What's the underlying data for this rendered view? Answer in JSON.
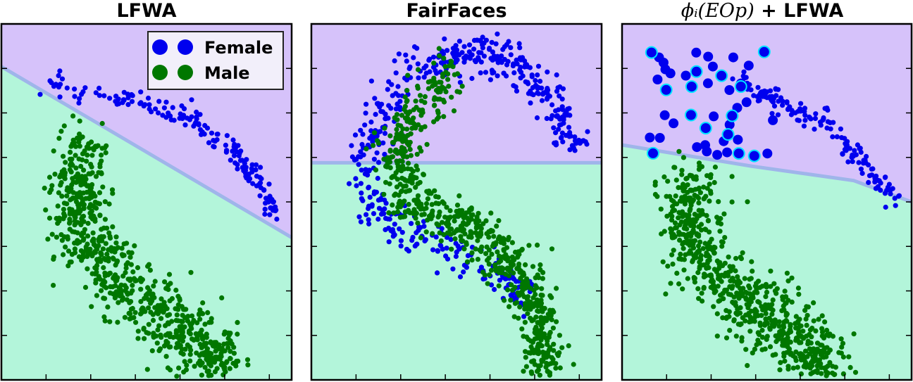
{
  "colors": {
    "female": "#0000ee",
    "male": "#007700",
    "region_female": "#d6c2fa",
    "region_male": "#b3f5da",
    "boundary": "#9fb5ea",
    "highlight_ring": "#00e5ff",
    "frame": "#000000"
  },
  "legend": {
    "female_label": "Female",
    "male_label": "Male"
  },
  "chart_data": [
    {
      "type": "scatter",
      "title": "LFWA",
      "xlabel": "",
      "ylabel": "",
      "xlim": [
        0,
        100
      ],
      "ylim": [
        0,
        100
      ],
      "legend": "top-right",
      "boundary_line": [
        [
          0,
          88
        ],
        [
          100,
          40
        ]
      ],
      "series": [
        {
          "name": "Female",
          "cluster": {
            "shape": "arc",
            "n": 170,
            "path": [
              [
                15,
                84
              ],
              [
                35,
                80
              ],
              [
                55,
                77
              ],
              [
                68,
                72
              ],
              [
                80,
                64
              ],
              [
                88,
                56
              ],
              [
                95,
                46
              ]
            ],
            "spread": 2.2
          }
        },
        {
          "name": "Male",
          "cluster": {
            "shape": "blob",
            "n": 760,
            "center": [
              48,
              34
            ],
            "path": [
              [
                30,
                66
              ],
              [
                25,
                52
              ],
              [
                28,
                40
              ],
              [
                40,
                28
              ],
              [
                55,
                18
              ],
              [
                68,
                10
              ],
              [
                76,
                4
              ]
            ],
            "spread": 7
          }
        }
      ]
    },
    {
      "type": "scatter",
      "title": "FairFaces",
      "xlabel": "",
      "ylabel": "",
      "xlim": [
        0,
        100
      ],
      "ylim": [
        0,
        100
      ],
      "boundary_line": [
        [
          0,
          61
        ],
        [
          100,
          61
        ]
      ],
      "series": [
        {
          "name": "Female",
          "cluster": {
            "shape": "hook",
            "n": 520,
            "path": [
              [
                92,
                64
              ],
              [
                83,
                78
              ],
              [
                72,
                88
              ],
              [
                55,
                92
              ],
              [
                38,
                88
              ],
              [
                25,
                76
              ],
              [
                18,
                62
              ],
              [
                20,
                48
              ],
              [
                35,
                42
              ],
              [
                62,
                30
              ],
              [
                75,
                24
              ]
            ],
            "spread": 4
          }
        },
        {
          "name": "Male",
          "cluster": {
            "shape": "hook",
            "n": 720,
            "path": [
              [
                48,
                86
              ],
              [
                35,
                74
              ],
              [
                28,
                62
              ],
              [
                35,
                50
              ],
              [
                50,
                44
              ],
              [
                62,
                40
              ],
              [
                72,
                30
              ],
              [
                78,
                20
              ],
              [
                80,
                10
              ],
              [
                78,
                4
              ]
            ],
            "spread": 5
          }
        }
      ]
    },
    {
      "type": "scatter",
      "title": "ϕᵢ(EOp) + LFWA",
      "title_math": "ϕᵢ(EOp)",
      "title_suffix": " + LFWA",
      "xlabel": "",
      "ylabel": "",
      "xlim": [
        0,
        100
      ],
      "ylim": [
        0,
        100
      ],
      "boundary_line": [
        [
          0,
          66
        ],
        [
          45,
          60
        ],
        [
          80,
          56
        ],
        [
          100,
          50
        ]
      ],
      "series": [
        {
          "name": "Female",
          "cluster": {
            "shape": "arc",
            "n": 150,
            "path": [
              [
                40,
                85
              ],
              [
                50,
                80
              ],
              [
                60,
                76
              ],
              [
                70,
                72
              ],
              [
                80,
                64
              ],
              [
                88,
                56
              ],
              [
                95,
                50
              ]
            ],
            "spread": 2.2
          }
        },
        {
          "name": "Female (large)",
          "cluster": {
            "shape": "points",
            "n": 32
          }
        },
        {
          "name": "Female (highlighted)",
          "cluster": {
            "shape": "points",
            "n": 14
          }
        },
        {
          "name": "Male",
          "cluster": {
            "shape": "blob",
            "n": 720,
            "path": [
              [
                25,
                55
              ],
              [
                22,
                44
              ],
              [
                28,
                34
              ],
              [
                40,
                24
              ],
              [
                52,
                16
              ],
              [
                62,
                10
              ],
              [
                72,
                4
              ]
            ],
            "spread": 7
          }
        }
      ]
    }
  ]
}
